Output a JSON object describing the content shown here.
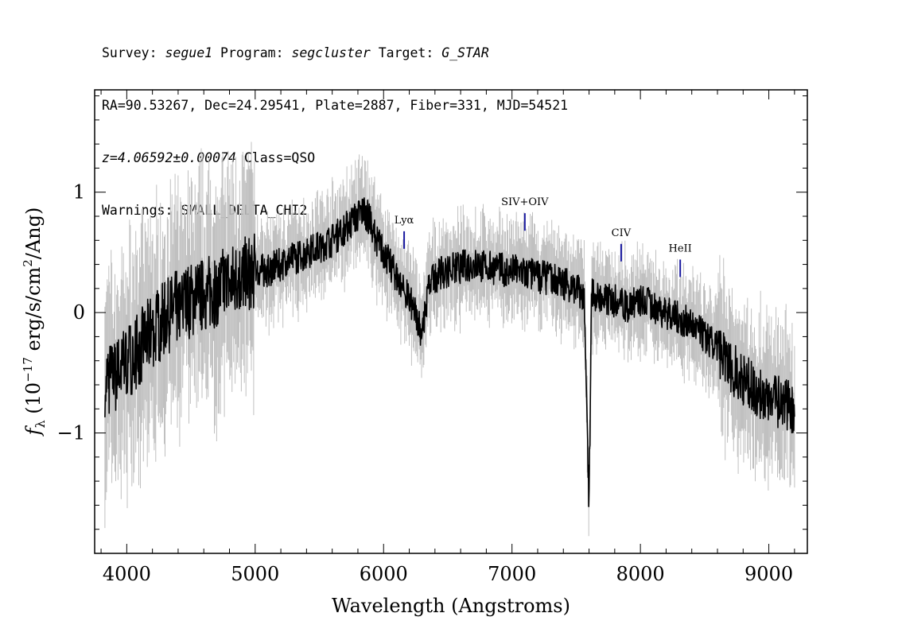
{
  "header": {
    "line1": {
      "survey_label": "Survey: ",
      "survey": "segue1",
      "program_label": " Program: ",
      "program": "segcluster",
      "target_label": " Target: ",
      "target": "G_STAR"
    },
    "line2": "RA=90.53267, Dec=24.29541, Plate=2887, Fiber=331, MJD=54521",
    "line3": {
      "redshift": "z=4.06592±0.00074",
      "class": " Class=QSO"
    },
    "line4": "Warnings: SMALL_DELTA_CHI2"
  },
  "colors": {
    "flux": "#000000",
    "error_band": "#c0c0c0",
    "line_marker": "#1a1aa0",
    "frame": "#000000"
  },
  "chart_data": {
    "type": "line",
    "title": "",
    "xlabel": "Wavelength (Angstroms)",
    "ylabel": "f_λ (10^-17 erg/s/cm^2/Ang)",
    "xlim": [
      3750,
      9300
    ],
    "ylim": [
      -2.0,
      1.85
    ],
    "x_ticks": [
      4000,
      5000,
      6000,
      7000,
      8000,
      9000
    ],
    "x_tick_labels": [
      "4000",
      "5000",
      "6000",
      "7000",
      "8000",
      "9000"
    ],
    "y_ticks": [
      -1,
      0,
      1
    ],
    "y_tick_labels": [
      "−1",
      "0",
      "1"
    ],
    "grid": false,
    "series": [
      {
        "x": [
          3830,
          3900,
          4000,
          4100,
          4200,
          4300,
          4400,
          4500,
          4600,
          4700,
          4800,
          4900,
          5000,
          5100,
          5200,
          5300,
          5400,
          5500,
          5600,
          5700,
          5800,
          5850,
          5900,
          5950,
          6000,
          6050,
          6100,
          6150,
          6200,
          6250,
          6280,
          6300,
          6350,
          6400,
          6500,
          6600,
          6700,
          6800,
          6900,
          7000,
          7100,
          7200,
          7300,
          7400,
          7500,
          7560,
          7600,
          7620,
          7650,
          7700,
          7800,
          7900,
          8000,
          8100,
          8200,
          8300,
          8400,
          8500,
          8600,
          8700,
          8800,
          8900,
          9000,
          9100,
          9200
        ],
        "values": [
          -0.55,
          -0.55,
          -0.4,
          -0.3,
          -0.15,
          -0.05,
          0.05,
          0.1,
          0.15,
          0.2,
          0.25,
          0.3,
          0.35,
          0.35,
          0.4,
          0.45,
          0.5,
          0.55,
          0.6,
          0.7,
          0.8,
          0.85,
          0.75,
          0.6,
          0.5,
          0.4,
          0.3,
          0.2,
          0.1,
          0.0,
          -0.1,
          -0.2,
          0.2,
          0.3,
          0.35,
          0.38,
          0.4,
          0.38,
          0.36,
          0.35,
          0.33,
          0.3,
          0.28,
          0.25,
          0.2,
          0.15,
          -1.6,
          0.2,
          0.15,
          0.1,
          0.1,
          0.05,
          0.1,
          0.05,
          0.0,
          -0.05,
          -0.1,
          -0.2,
          -0.3,
          -0.45,
          -0.55,
          -0.65,
          -0.7,
          -0.75,
          -0.8
        ]
      }
    ],
    "annotations": [
      {
        "label": "Lyα",
        "x": 6160
      },
      {
        "label": "SIV+OIV",
        "x": 7100
      },
      {
        "label": "CIV",
        "x": 7850
      },
      {
        "label": "HeII",
        "x": 8310
      }
    ]
  }
}
